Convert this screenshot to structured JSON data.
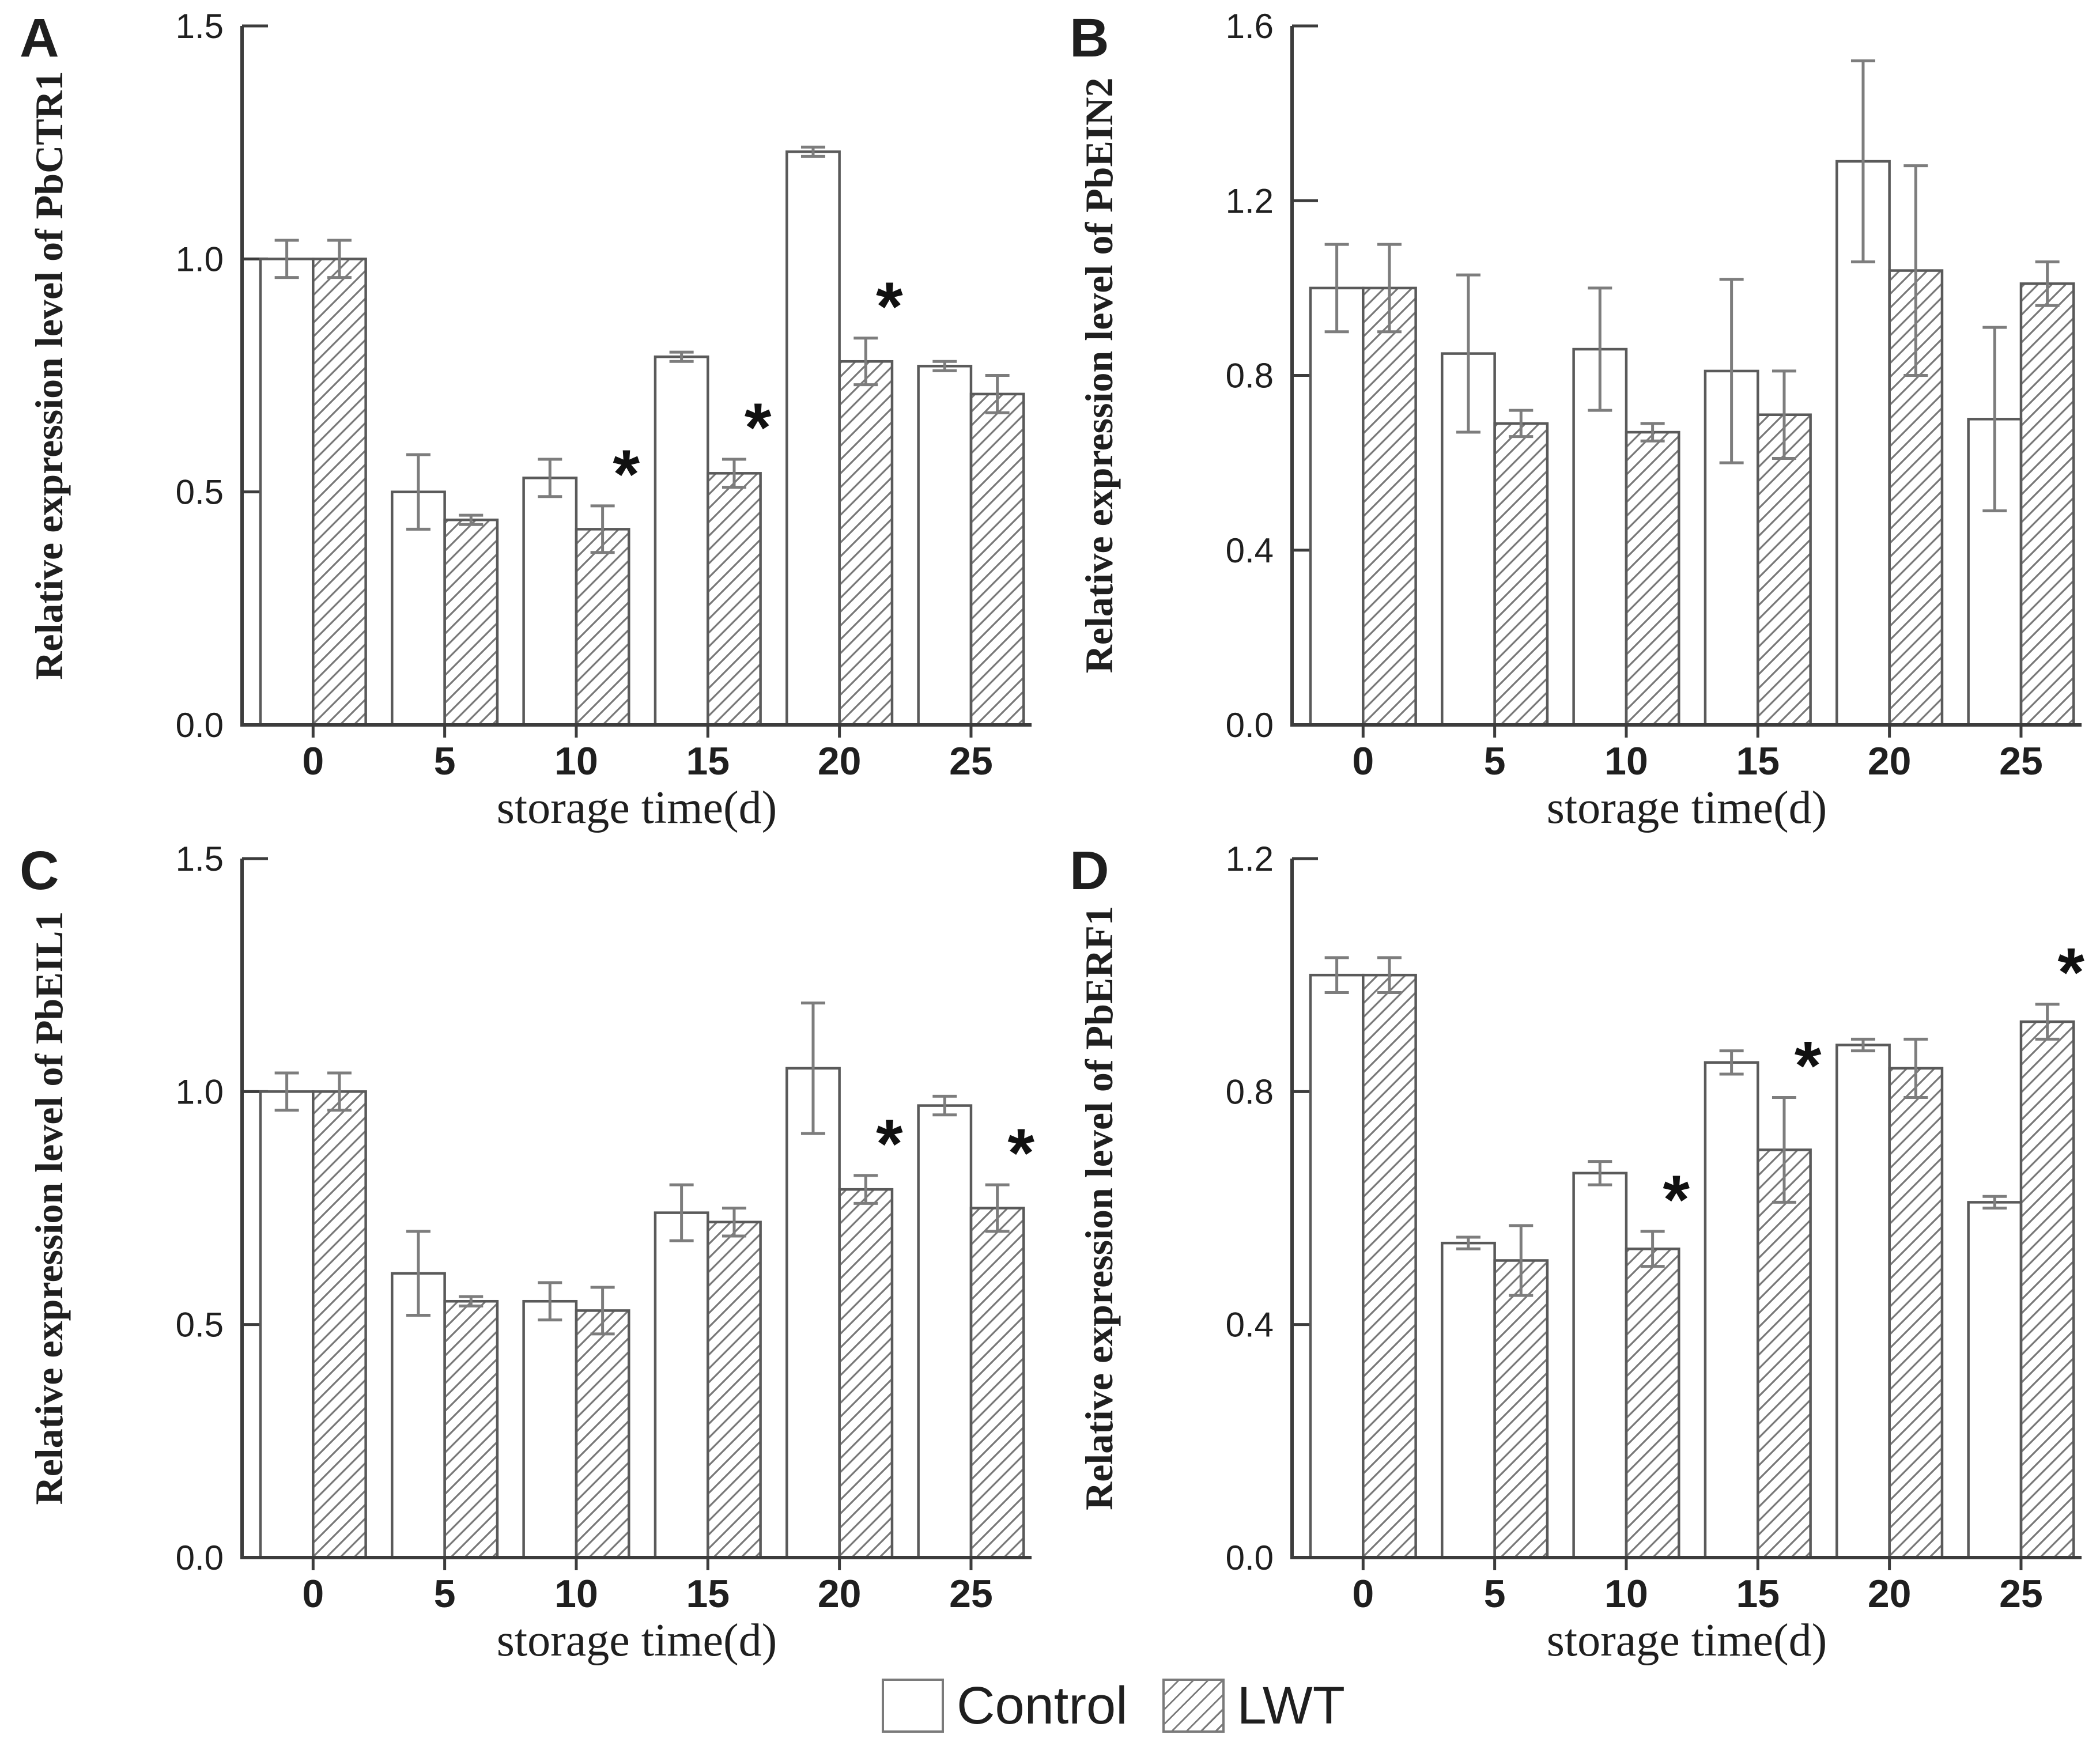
{
  "figure": {
    "background": "#ffffff",
    "xlabel": "storage time(d)"
  },
  "legend": {
    "control_label": "Control",
    "lwt_label": "LWT"
  },
  "colors": {
    "axis": "#3c3c3c",
    "bar_outline": "#5a5a5a",
    "hatch": "#787878",
    "error_bar": "#7d7d7d",
    "text": "#1f1f1f",
    "asterisk": "#111111"
  },
  "chart_data": [
    {
      "type": "bar",
      "panel_letter": "A",
      "ylabel": "Relative expression level of PbCTR1",
      "xlabel": "storage time(d)",
      "categories": [
        "0",
        "5",
        "10",
        "15",
        "20",
        "25"
      ],
      "ylim": [
        0,
        1.5
      ],
      "yticks": [
        0,
        0.5,
        1.0,
        1.5
      ],
      "grid": false,
      "series": [
        {
          "name": "Control",
          "pattern": "solid",
          "values": [
            1.0,
            0.5,
            0.53,
            0.79,
            1.23,
            0.77
          ],
          "errors": [
            0.04,
            0.08,
            0.04,
            0.01,
            0.01,
            0.01
          ],
          "significant": [
            false,
            false,
            false,
            false,
            false,
            false
          ]
        },
        {
          "name": "LWT",
          "pattern": "hatch",
          "values": [
            1.0,
            0.44,
            0.42,
            0.54,
            0.78,
            0.71
          ],
          "errors": [
            0.04,
            0.01,
            0.05,
            0.03,
            0.05,
            0.04
          ],
          "significant": [
            false,
            false,
            true,
            true,
            true,
            false
          ]
        }
      ]
    },
    {
      "type": "bar",
      "panel_letter": "B",
      "ylabel": "Relative expression level of PbEIN2",
      "xlabel": "storage time(d)",
      "categories": [
        "0",
        "5",
        "10",
        "15",
        "20",
        "25"
      ],
      "ylim": [
        0,
        1.6
      ],
      "yticks": [
        0,
        0.4,
        0.8,
        1.2,
        1.6
      ],
      "grid": false,
      "series": [
        {
          "name": "Control",
          "pattern": "solid",
          "values": [
            1.0,
            0.85,
            0.86,
            0.81,
            1.29,
            0.7
          ],
          "errors": [
            0.1,
            0.18,
            0.14,
            0.21,
            0.23,
            0.21
          ],
          "significant": [
            false,
            false,
            false,
            false,
            false,
            false
          ]
        },
        {
          "name": "LWT",
          "pattern": "hatch",
          "values": [
            1.0,
            0.69,
            0.67,
            0.71,
            1.04,
            1.01
          ],
          "errors": [
            0.1,
            0.03,
            0.02,
            0.1,
            0.24,
            0.05
          ],
          "significant": [
            false,
            false,
            false,
            false,
            false,
            false
          ]
        }
      ]
    },
    {
      "type": "bar",
      "panel_letter": "C",
      "ylabel": "Relative expression level of PbEIL1",
      "xlabel": "storage time(d)",
      "categories": [
        "0",
        "5",
        "10",
        "15",
        "20",
        "25"
      ],
      "ylim": [
        0,
        1.5
      ],
      "yticks": [
        0,
        0.5,
        1.0,
        1.5
      ],
      "grid": false,
      "series": [
        {
          "name": "Control",
          "pattern": "solid",
          "values": [
            1.0,
            0.61,
            0.55,
            0.74,
            1.05,
            0.97
          ],
          "errors": [
            0.04,
            0.09,
            0.04,
            0.06,
            0.14,
            0.02
          ],
          "significant": [
            false,
            false,
            false,
            false,
            false,
            false
          ]
        },
        {
          "name": "LWT",
          "pattern": "hatch",
          "values": [
            1.0,
            0.55,
            0.53,
            0.72,
            0.79,
            0.75
          ],
          "errors": [
            0.04,
            0.01,
            0.05,
            0.03,
            0.03,
            0.05
          ],
          "significant": [
            false,
            false,
            false,
            false,
            true,
            true
          ]
        }
      ]
    },
    {
      "type": "bar",
      "panel_letter": "D",
      "ylabel": "Relative expression level of PbERF1",
      "xlabel": "storage time(d)",
      "categories": [
        "0",
        "5",
        "10",
        "15",
        "20",
        "25"
      ],
      "ylim": [
        0,
        1.2
      ],
      "yticks": [
        0,
        0.4,
        0.8,
        1.2
      ],
      "grid": false,
      "series": [
        {
          "name": "Control",
          "pattern": "solid",
          "values": [
            1.0,
            0.54,
            0.66,
            0.85,
            0.88,
            0.61
          ],
          "errors": [
            0.03,
            0.01,
            0.02,
            0.02,
            0.01,
            0.01
          ],
          "significant": [
            false,
            false,
            false,
            false,
            false,
            false
          ]
        },
        {
          "name": "LWT",
          "pattern": "hatch",
          "values": [
            1.0,
            0.51,
            0.53,
            0.7,
            0.84,
            0.92
          ],
          "errors": [
            0.03,
            0.06,
            0.03,
            0.09,
            0.05,
            0.03
          ],
          "significant": [
            false,
            false,
            true,
            true,
            false,
            true
          ]
        }
      ]
    }
  ]
}
